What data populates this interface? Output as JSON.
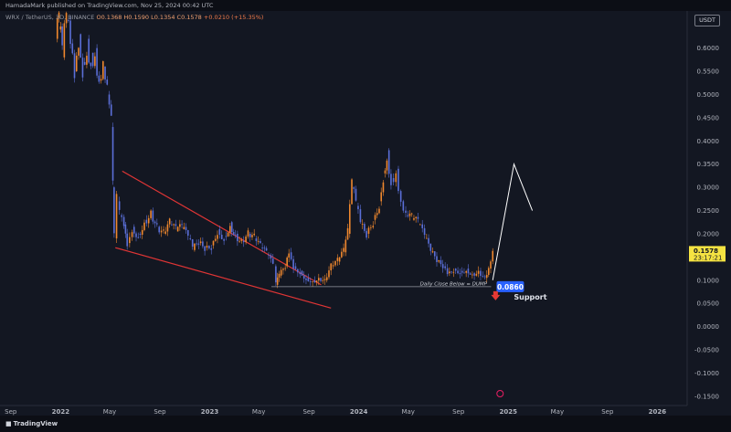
{
  "header": {
    "published_text": "HamadaMark published on TradingView.com, Nov 25, 2024 00:42 UTC"
  },
  "legend": {
    "symbol_text": "WRX / TetherUS, 3D, BINANCE",
    "ohlc_text": "O0.1368 H0.1590 L0.1354 C0.1578",
    "change_text": "+0.0210 (+15.35%)"
  },
  "currency_badge": "USDT",
  "price_label": {
    "value": "0.1578",
    "countdown": "23:17:21",
    "color": "#f5e342"
  },
  "support": {
    "value_label": "0.0860",
    "label": "Support",
    "annotation": "Daily Close Below = DUMP"
  },
  "footer": {
    "brand": "TradingView"
  },
  "colors": {
    "background": "#131722",
    "up": "#f0882e",
    "down": "#5b6fd8",
    "wedge": "#e03535",
    "projection": "#ffffff",
    "support_badge": "#2962ff"
  },
  "chart_data": {
    "type": "line",
    "title": "",
    "xlabel": "",
    "ylabel": "",
    "y_scale": "linear",
    "ylim": [
      -0.17,
      0.68
    ],
    "xlim": [
      "2021-08-28",
      "2026-03-15"
    ],
    "y_ticks": [
      0.6,
      0.55,
      0.5,
      0.45,
      0.4,
      0.35,
      0.3,
      0.25,
      0.2,
      0.15,
      0.1,
      0.05,
      0.0,
      -0.05,
      -0.1,
      -0.15
    ],
    "y_tick_labels": [
      "0.6000",
      "0.5500",
      "0.5000",
      "0.4500",
      "0.4000",
      "0.3500",
      "0.3000",
      "0.2500",
      "0.2000",
      "0.1500",
      "0.1000",
      "0.0500",
      "0.0000",
      "-0.0500",
      "-0.1000",
      "-0.1500"
    ],
    "x_ticks": [
      {
        "date": "2021-09-01",
        "label": "Sep"
      },
      {
        "date": "2022-01-01",
        "label": "2022"
      },
      {
        "date": "2022-05-01",
        "label": "May"
      },
      {
        "date": "2022-09-01",
        "label": "Sep"
      },
      {
        "date": "2023-01-01",
        "label": "2023"
      },
      {
        "date": "2023-05-01",
        "label": "May"
      },
      {
        "date": "2023-09-01",
        "label": "Sep"
      },
      {
        "date": "2024-01-01",
        "label": "2024"
      },
      {
        "date": "2024-05-01",
        "label": "May"
      },
      {
        "date": "2024-09-01",
        "label": "Sep"
      },
      {
        "date": "2025-01-01",
        "label": "2025"
      },
      {
        "date": "2025-05-01",
        "label": "May"
      },
      {
        "date": "2025-09-01",
        "label": "Sep"
      },
      {
        "date": "2026-01-01",
        "label": "2026"
      }
    ],
    "grid": false,
    "series": [
      {
        "points": [
          [
            "2021-12-20",
            0.62
          ],
          [
            "2021-12-28",
            0.64
          ],
          [
            "2022-01-05",
            0.58
          ],
          [
            "2022-01-15",
            0.66
          ],
          [
            "2022-01-25",
            0.61
          ],
          [
            "2022-02-04",
            0.55
          ],
          [
            "2022-02-14",
            0.63
          ],
          [
            "2022-02-24",
            0.57
          ],
          [
            "2022-03-06",
            0.62
          ],
          [
            "2022-03-16",
            0.59
          ],
          [
            "2022-03-26",
            0.6
          ],
          [
            "2022-04-05",
            0.53
          ],
          [
            "2022-04-15",
            0.56
          ],
          [
            "2022-04-25",
            0.5
          ],
          [
            "2022-05-05",
            0.43
          ],
          [
            "2022-05-09",
            0.3
          ],
          [
            "2022-05-12",
            0.19
          ],
          [
            "2022-05-18",
            0.27
          ],
          [
            "2022-05-25",
            0.24
          ],
          [
            "2022-06-05",
            0.22
          ],
          [
            "2022-06-13",
            0.18
          ],
          [
            "2022-06-25",
            0.215
          ],
          [
            "2022-07-10",
            0.2
          ],
          [
            "2022-07-25",
            0.23
          ],
          [
            "2022-08-10",
            0.25
          ],
          [
            "2022-08-25",
            0.215
          ],
          [
            "2022-09-10",
            0.2
          ],
          [
            "2022-09-25",
            0.22
          ],
          [
            "2022-10-10",
            0.205
          ],
          [
            "2022-10-25",
            0.21
          ],
          [
            "2022-11-09",
            0.19
          ],
          [
            "2022-11-20",
            0.165
          ],
          [
            "2022-12-05",
            0.18
          ],
          [
            "2022-12-20",
            0.17
          ],
          [
            "2023-01-05",
            0.175
          ],
          [
            "2023-01-20",
            0.21
          ],
          [
            "2023-02-05",
            0.195
          ],
          [
            "2023-02-20",
            0.225
          ],
          [
            "2023-03-05",
            0.2
          ],
          [
            "2023-03-20",
            0.185
          ],
          [
            "2023-04-05",
            0.2
          ],
          [
            "2023-04-20",
            0.19
          ],
          [
            "2023-05-05",
            0.17
          ],
          [
            "2023-05-20",
            0.155
          ],
          [
            "2023-06-05",
            0.13
          ],
          [
            "2023-06-12",
            0.09
          ],
          [
            "2023-06-20",
            0.11
          ],
          [
            "2023-07-05",
            0.13
          ],
          [
            "2023-07-14",
            0.16
          ],
          [
            "2023-07-25",
            0.13
          ],
          [
            "2023-08-10",
            0.12
          ],
          [
            "2023-08-25",
            0.105
          ],
          [
            "2023-09-10",
            0.1
          ],
          [
            "2023-09-25",
            0.105
          ],
          [
            "2023-10-10",
            0.1
          ],
          [
            "2023-10-25",
            0.13
          ],
          [
            "2023-11-10",
            0.14
          ],
          [
            "2023-11-25",
            0.16
          ],
          [
            "2023-12-05",
            0.2
          ],
          [
            "2023-12-15",
            0.3
          ],
          [
            "2023-12-25",
            0.26
          ],
          [
            "2024-01-05",
            0.22
          ],
          [
            "2024-01-20",
            0.2
          ],
          [
            "2024-02-05",
            0.23
          ],
          [
            "2024-02-20",
            0.27
          ],
          [
            "2024-03-01",
            0.33
          ],
          [
            "2024-03-10",
            0.38
          ],
          [
            "2024-03-20",
            0.32
          ],
          [
            "2024-04-01",
            0.34
          ],
          [
            "2024-04-13",
            0.27
          ],
          [
            "2024-04-25",
            0.24
          ],
          [
            "2024-05-10",
            0.23
          ],
          [
            "2024-05-25",
            0.22
          ],
          [
            "2024-06-10",
            0.19
          ],
          [
            "2024-06-25",
            0.16
          ],
          [
            "2024-07-10",
            0.14
          ],
          [
            "2024-07-25",
            0.13
          ],
          [
            "2024-08-05",
            0.115
          ],
          [
            "2024-08-20",
            0.125
          ],
          [
            "2024-09-05",
            0.12
          ],
          [
            "2024-09-20",
            0.125
          ],
          [
            "2024-10-05",
            0.115
          ],
          [
            "2024-10-20",
            0.12
          ],
          [
            "2024-11-05",
            0.105
          ],
          [
            "2024-11-14",
            0.125
          ],
          [
            "2024-11-24",
            0.1578
          ]
        ]
      }
    ],
    "annotations": {
      "wedge_upper": [
        [
          "2022-06-01",
          0.335
        ],
        [
          "2023-10-01",
          0.09
        ]
      ],
      "wedge_lower": [
        [
          "2022-05-15",
          0.17
        ],
        [
          "2023-10-25",
          0.04
        ]
      ],
      "support_line": {
        "y": 0.086,
        "from": "2023-06-01",
        "to": "2024-11-20"
      },
      "projection": [
        [
          "2024-11-24",
          0.1
        ],
        [
          "2025-01-15",
          0.35
        ],
        [
          "2025-03-01",
          0.25
        ]
      ]
    }
  }
}
